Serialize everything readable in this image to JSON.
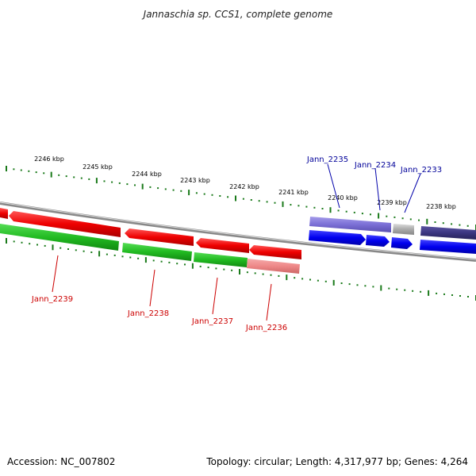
{
  "title": "Jannaschia sp. CCS1, complete genome",
  "footer": {
    "accession": "Accession: NC_007802",
    "summary": "Topology: circular; Length: 4,317,977 bp; Genes: 4,264"
  },
  "colors": {
    "forward_cds": "#0000ee",
    "forward_cds_light": "#7b6fd6",
    "forward_cds_dark": "#3b3580",
    "reverse_cds": "#ee0000",
    "reverse_green": "#33bb33",
    "reverse_pink": "#ee8888",
    "other_gene": "#aaaaaa",
    "tick": "#1a7a1a",
    "backbone": "#888888",
    "label_forward": "#000099",
    "label_reverse": "#cc0000"
  },
  "scale_labels": [
    "2246 kbp",
    "2245 kbp",
    "2244 kbp",
    "2243 kbp",
    "2242 kbp",
    "2241 kbp",
    "2240 kbp",
    "2239 kbp",
    "2238 kbp"
  ],
  "genes": {
    "forward": [
      {
        "name": "Jann_2235",
        "strand": "+",
        "labeled": true
      },
      {
        "name": "Jann_2234",
        "strand": "+",
        "labeled": true
      },
      {
        "name": "Jann_2233",
        "strand": "+",
        "labeled": true
      }
    ],
    "reverse": [
      {
        "name": "Jann_2239",
        "strand": "-",
        "labeled": true
      },
      {
        "name": "Jann_2238",
        "strand": "-",
        "labeled": true
      },
      {
        "name": "Jann_2237",
        "strand": "-",
        "labeled": true
      },
      {
        "name": "Jann_2236",
        "strand": "-",
        "labeled": true
      }
    ]
  }
}
